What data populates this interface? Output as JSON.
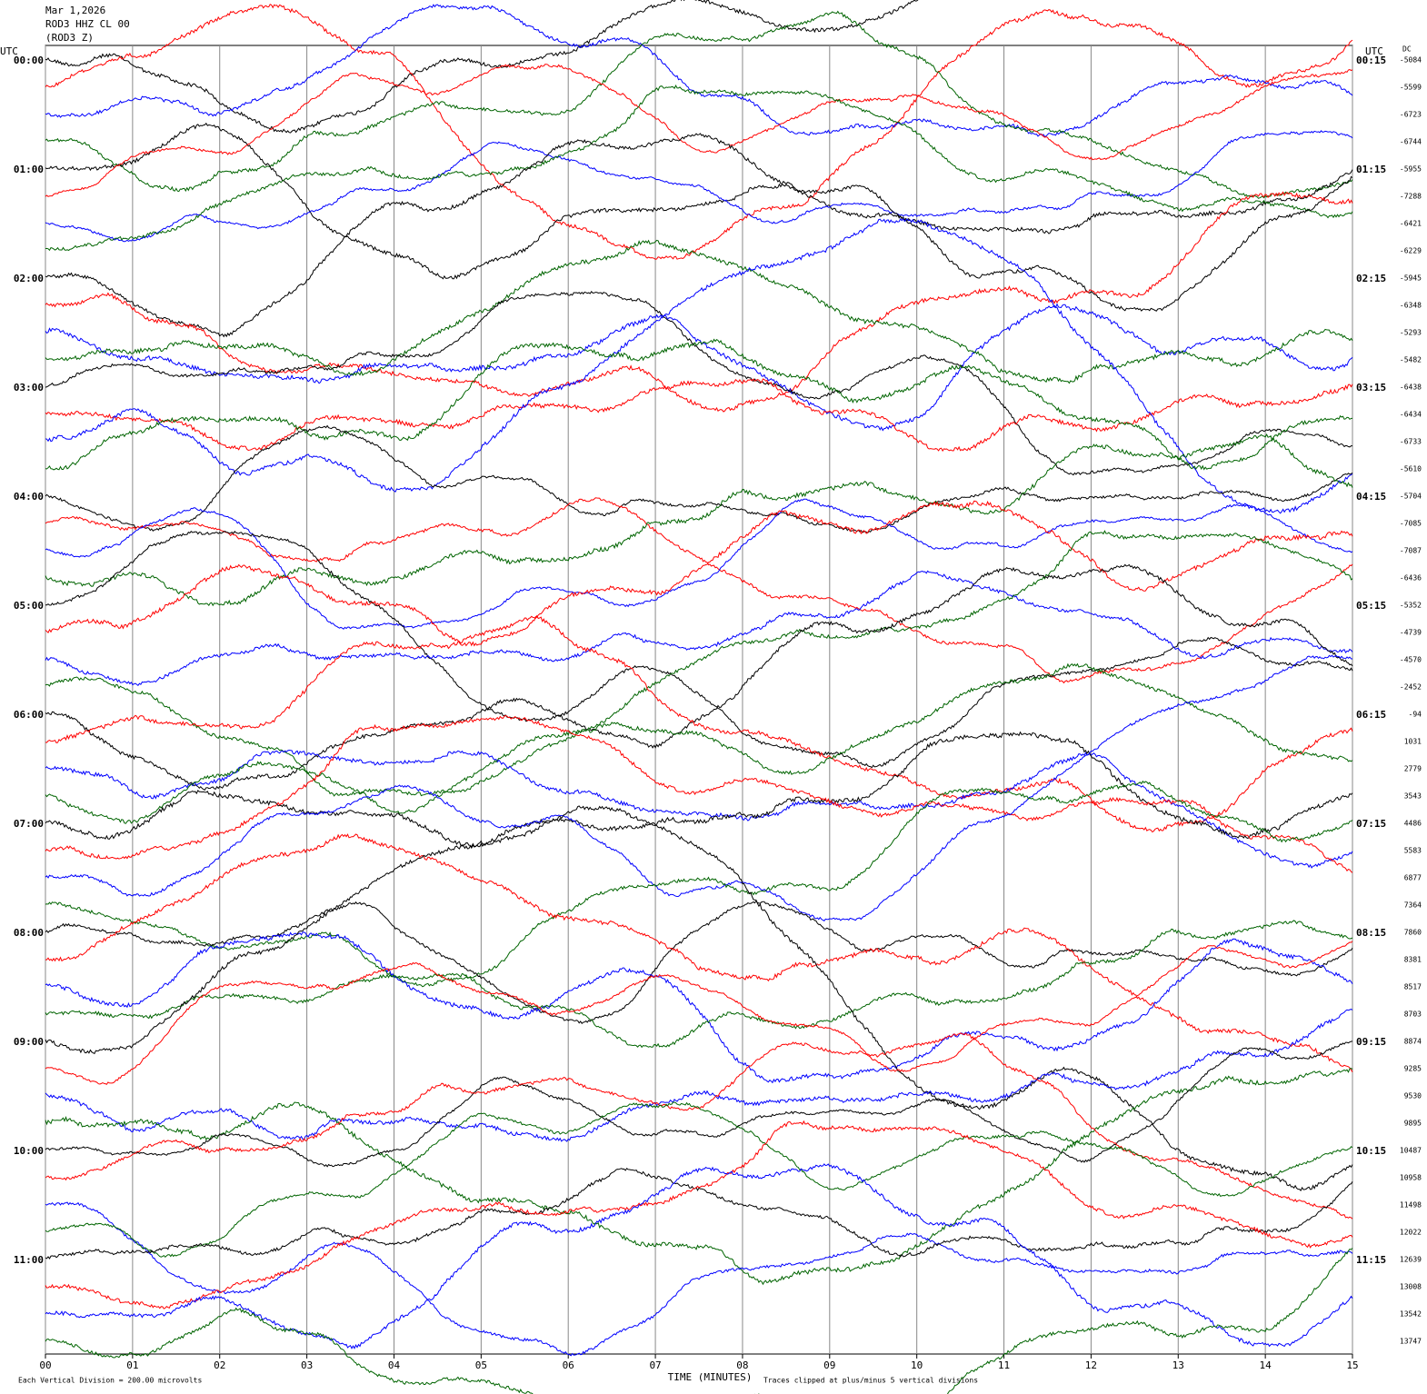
{
  "chart_data": {
    "type": "helicorder",
    "date": "Mar 1,2026",
    "station": "ROD3 HHZ CL 00",
    "component": "(ROD3 Z)",
    "left_axis_label": "UTC",
    "right_axis_label": "UTC",
    "dc_label": "DC",
    "left_time_labels": [
      "00:00",
      "01:00",
      "02:00",
      "03:00",
      "04:00",
      "05:00",
      "06:00",
      "07:00",
      "08:00",
      "09:00",
      "10:00",
      "11:00"
    ],
    "right_time_labels": [
      "00:15",
      "01:15",
      "02:15",
      "03:15",
      "04:15",
      "05:15",
      "06:15",
      "07:15",
      "08:15",
      "09:15",
      "10:15",
      "11:15"
    ],
    "dc_values": [
      -5084,
      -5599,
      -6723,
      -6744,
      -5955,
      -7288,
      -6421,
      -6229,
      -5945,
      -6348,
      -5293,
      -5482,
      -6438,
      -6434,
      -6733,
      -5610,
      -5704,
      -7085,
      -7087,
      -6436,
      -5352,
      -4739,
      -4570,
      -2452,
      -94,
      1031,
      2779,
      3543,
      4486,
      5583,
      6877,
      7364,
      7860,
      8381,
      8517,
      8703,
      8874,
      9285,
      9530,
      9895,
      10487,
      10958,
      11498,
      12022,
      12639,
      13008,
      13542,
      13747
    ],
    "trace_colors": [
      "#000000",
      "#ff0000",
      "#0000ff",
      "#006400"
    ],
    "xlabel": "TIME (MINUTES)",
    "xlim": [
      0,
      15
    ],
    "xticks": [
      {
        "value": 0,
        "label": "00"
      },
      {
        "value": 1,
        "label": "01"
      },
      {
        "value": 2,
        "label": "02"
      },
      {
        "value": 3,
        "label": "03"
      },
      {
        "value": 4,
        "label": "04"
      },
      {
        "value": 5,
        "label": "05"
      },
      {
        "value": 6,
        "label": "06"
      },
      {
        "value": 7,
        "label": "07"
      },
      {
        "value": 8,
        "label": "08"
      },
      {
        "value": 9,
        "label": "09"
      },
      {
        "value": 10,
        "label": "10"
      },
      {
        "value": 11,
        "label": "11"
      },
      {
        "value": 12,
        "label": "12"
      },
      {
        "value": 13,
        "label": "13"
      },
      {
        "value": 14,
        "label": "14"
      },
      {
        "value": 15,
        "label": "15"
      }
    ],
    "grid": true,
    "scale_note": "Each Vertical Division =  200.00 microvolts",
    "clip_note": "Traces clipped at plus/minus 5 vertical divisions"
  }
}
